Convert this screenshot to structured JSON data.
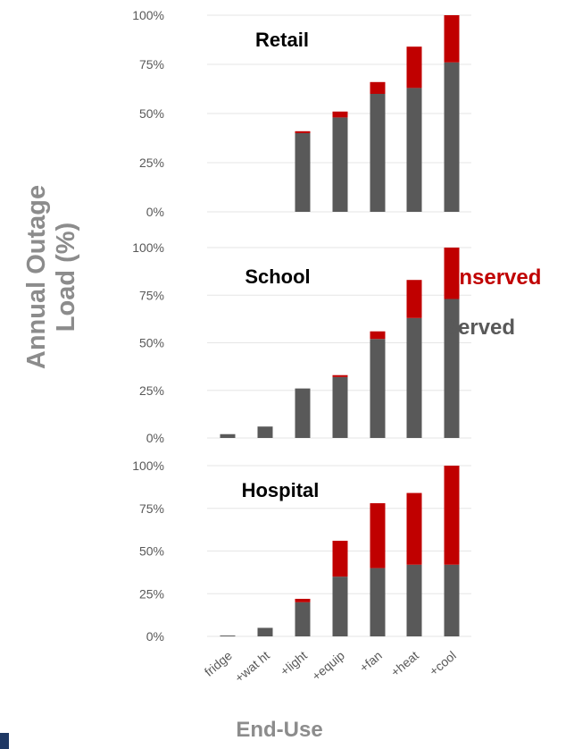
{
  "chart_data": [
    {
      "type": "bar",
      "stacked": true,
      "title": "Retail",
      "categories": [
        "fridge",
        "+wat ht",
        "+light",
        "+equip",
        "+fan",
        "+heat",
        "+cool"
      ],
      "series": [
        {
          "name": "Served",
          "values": [
            0,
            0,
            40,
            48,
            60,
            63,
            76
          ]
        },
        {
          "name": "Unserved",
          "values": [
            0,
            0,
            1,
            3,
            6,
            21,
            24
          ]
        }
      ],
      "ylim": [
        0,
        100
      ],
      "yticks": [
        "0%",
        "25%",
        "50%",
        "75%",
        "100%"
      ],
      "show_xticklabels": false
    },
    {
      "type": "bar",
      "stacked": true,
      "title": "School",
      "categories": [
        "fridge",
        "+wat ht",
        "+light",
        "+equip",
        "+fan",
        "+heat",
        "+cool"
      ],
      "series": [
        {
          "name": "Served",
          "values": [
            2,
            6,
            26,
            32,
            52,
            63,
            73
          ]
        },
        {
          "name": "Unserved",
          "values": [
            0,
            0,
            0,
            1,
            4,
            20,
            27
          ]
        }
      ],
      "ylim": [
        0,
        100
      ],
      "yticks": [
        "0%",
        "25%",
        "50%",
        "75%",
        "100%"
      ],
      "show_xticklabels": false
    },
    {
      "type": "bar",
      "stacked": true,
      "title": "Hospital",
      "categories": [
        "fridge",
        "+wat ht",
        "+light",
        "+equip",
        "+fan",
        "+heat",
        "+cool"
      ],
      "series": [
        {
          "name": "Served",
          "values": [
            0.5,
            5,
            20,
            35,
            40,
            42,
            42
          ]
        },
        {
          "name": "Unserved",
          "values": [
            0,
            0,
            2,
            21,
            38,
            42,
            58
          ]
        }
      ],
      "ylim": [
        0,
        100
      ],
      "yticks": [
        "0%",
        "25%",
        "50%",
        "75%",
        "100%"
      ],
      "show_xticklabels": true
    }
  ],
  "labels": {
    "ylabel_line1": "Annual Outage",
    "ylabel_line2": "Load (%)",
    "xlabel": "End-Use"
  },
  "legend": {
    "unserved": "Unserved",
    "served": "Served"
  },
  "colors": {
    "served": "#595959",
    "unserved": "#c00000",
    "axis_text": "#595959",
    "label_text": "#8c8c8c",
    "gridline": "#e6e6e6",
    "legend_served": "#595959",
    "legend_unserved": "#c00000"
  }
}
